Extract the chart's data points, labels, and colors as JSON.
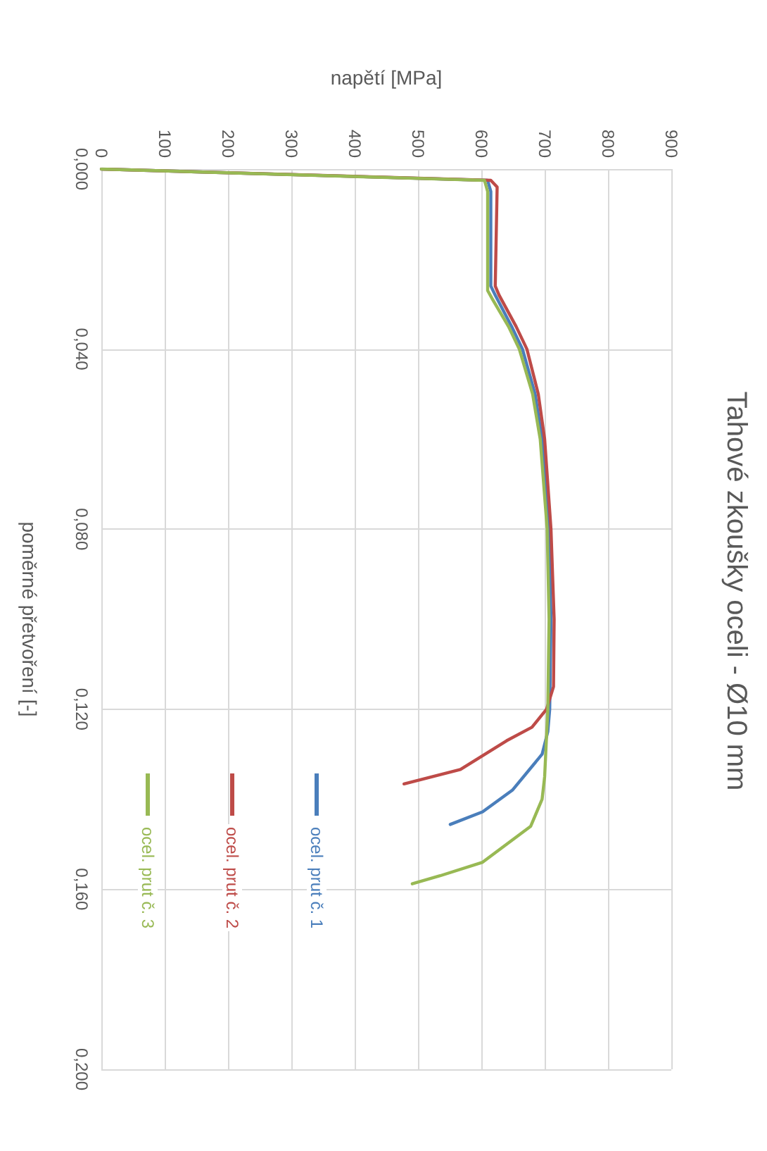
{
  "chart_data": {
    "type": "line",
    "title": "Tahové zkoušky oceli - Ø10 mm",
    "xlabel": "napětí [MPa]",
    "ylabel": "poměrné přetvoření [-]",
    "xlim": [
      0,
      900
    ],
    "xticks": [
      0,
      100,
      200,
      300,
      400,
      500,
      600,
      700,
      800,
      900
    ],
    "ylim": [
      0.2,
      0
    ],
    "yticks": [
      {
        "value": 0,
        "label": "0,000"
      },
      {
        "value": 0.04,
        "label": "0,040"
      },
      {
        "value": 0.08,
        "label": "0,080"
      },
      {
        "value": 0.12,
        "label": "0,120"
      },
      {
        "value": 0.16,
        "label": "0,160"
      },
      {
        "value": 0.2,
        "label": "0,200"
      }
    ],
    "grid": true,
    "legend": "bottom left",
    "marker": "none",
    "line_style": "solid",
    "series": [
      {
        "name": "ocel. prut č. 1",
        "color": "#4a7ebb",
        "x": [
          0,
          610,
          615,
          615,
          622,
          648,
          665,
          685,
          696,
          707,
          710,
          708,
          705,
          696,
          649,
          602,
          551
        ],
        "values": [
          0,
          0.0025,
          0.005,
          0.026,
          0.028,
          0.035,
          0.04,
          0.05,
          0.06,
          0.08,
          0.1,
          0.12,
          0.125,
          0.13,
          0.138,
          0.1428,
          0.1456
        ]
      },
      {
        "name": "ocel. prut č. 2",
        "color": "#be4b48",
        "x": [
          0,
          615,
          625,
          622,
          628,
          655,
          672,
          690,
          700,
          710,
          715,
          714,
          703,
          680,
          640,
          567,
          478
        ],
        "values": [
          0,
          0.0025,
          0.004,
          0.026,
          0.028,
          0.035,
          0.04,
          0.05,
          0.06,
          0.08,
          0.1,
          0.115,
          0.12,
          0.124,
          0.127,
          0.1334,
          0.1366
        ]
      },
      {
        "name": "ocel. prut č. 3",
        "color": "#98b954",
        "x": [
          0,
          605,
          610,
          610,
          618,
          643,
          660,
          681,
          693,
          704,
          707,
          705,
          700,
          696,
          678,
          602,
          535,
          491
        ],
        "values": [
          0,
          0.0025,
          0.005,
          0.027,
          0.029,
          0.035,
          0.04,
          0.05,
          0.06,
          0.08,
          0.1,
          0.12,
          0.135,
          0.14,
          0.146,
          0.154,
          0.157,
          0.1588
        ]
      }
    ]
  }
}
